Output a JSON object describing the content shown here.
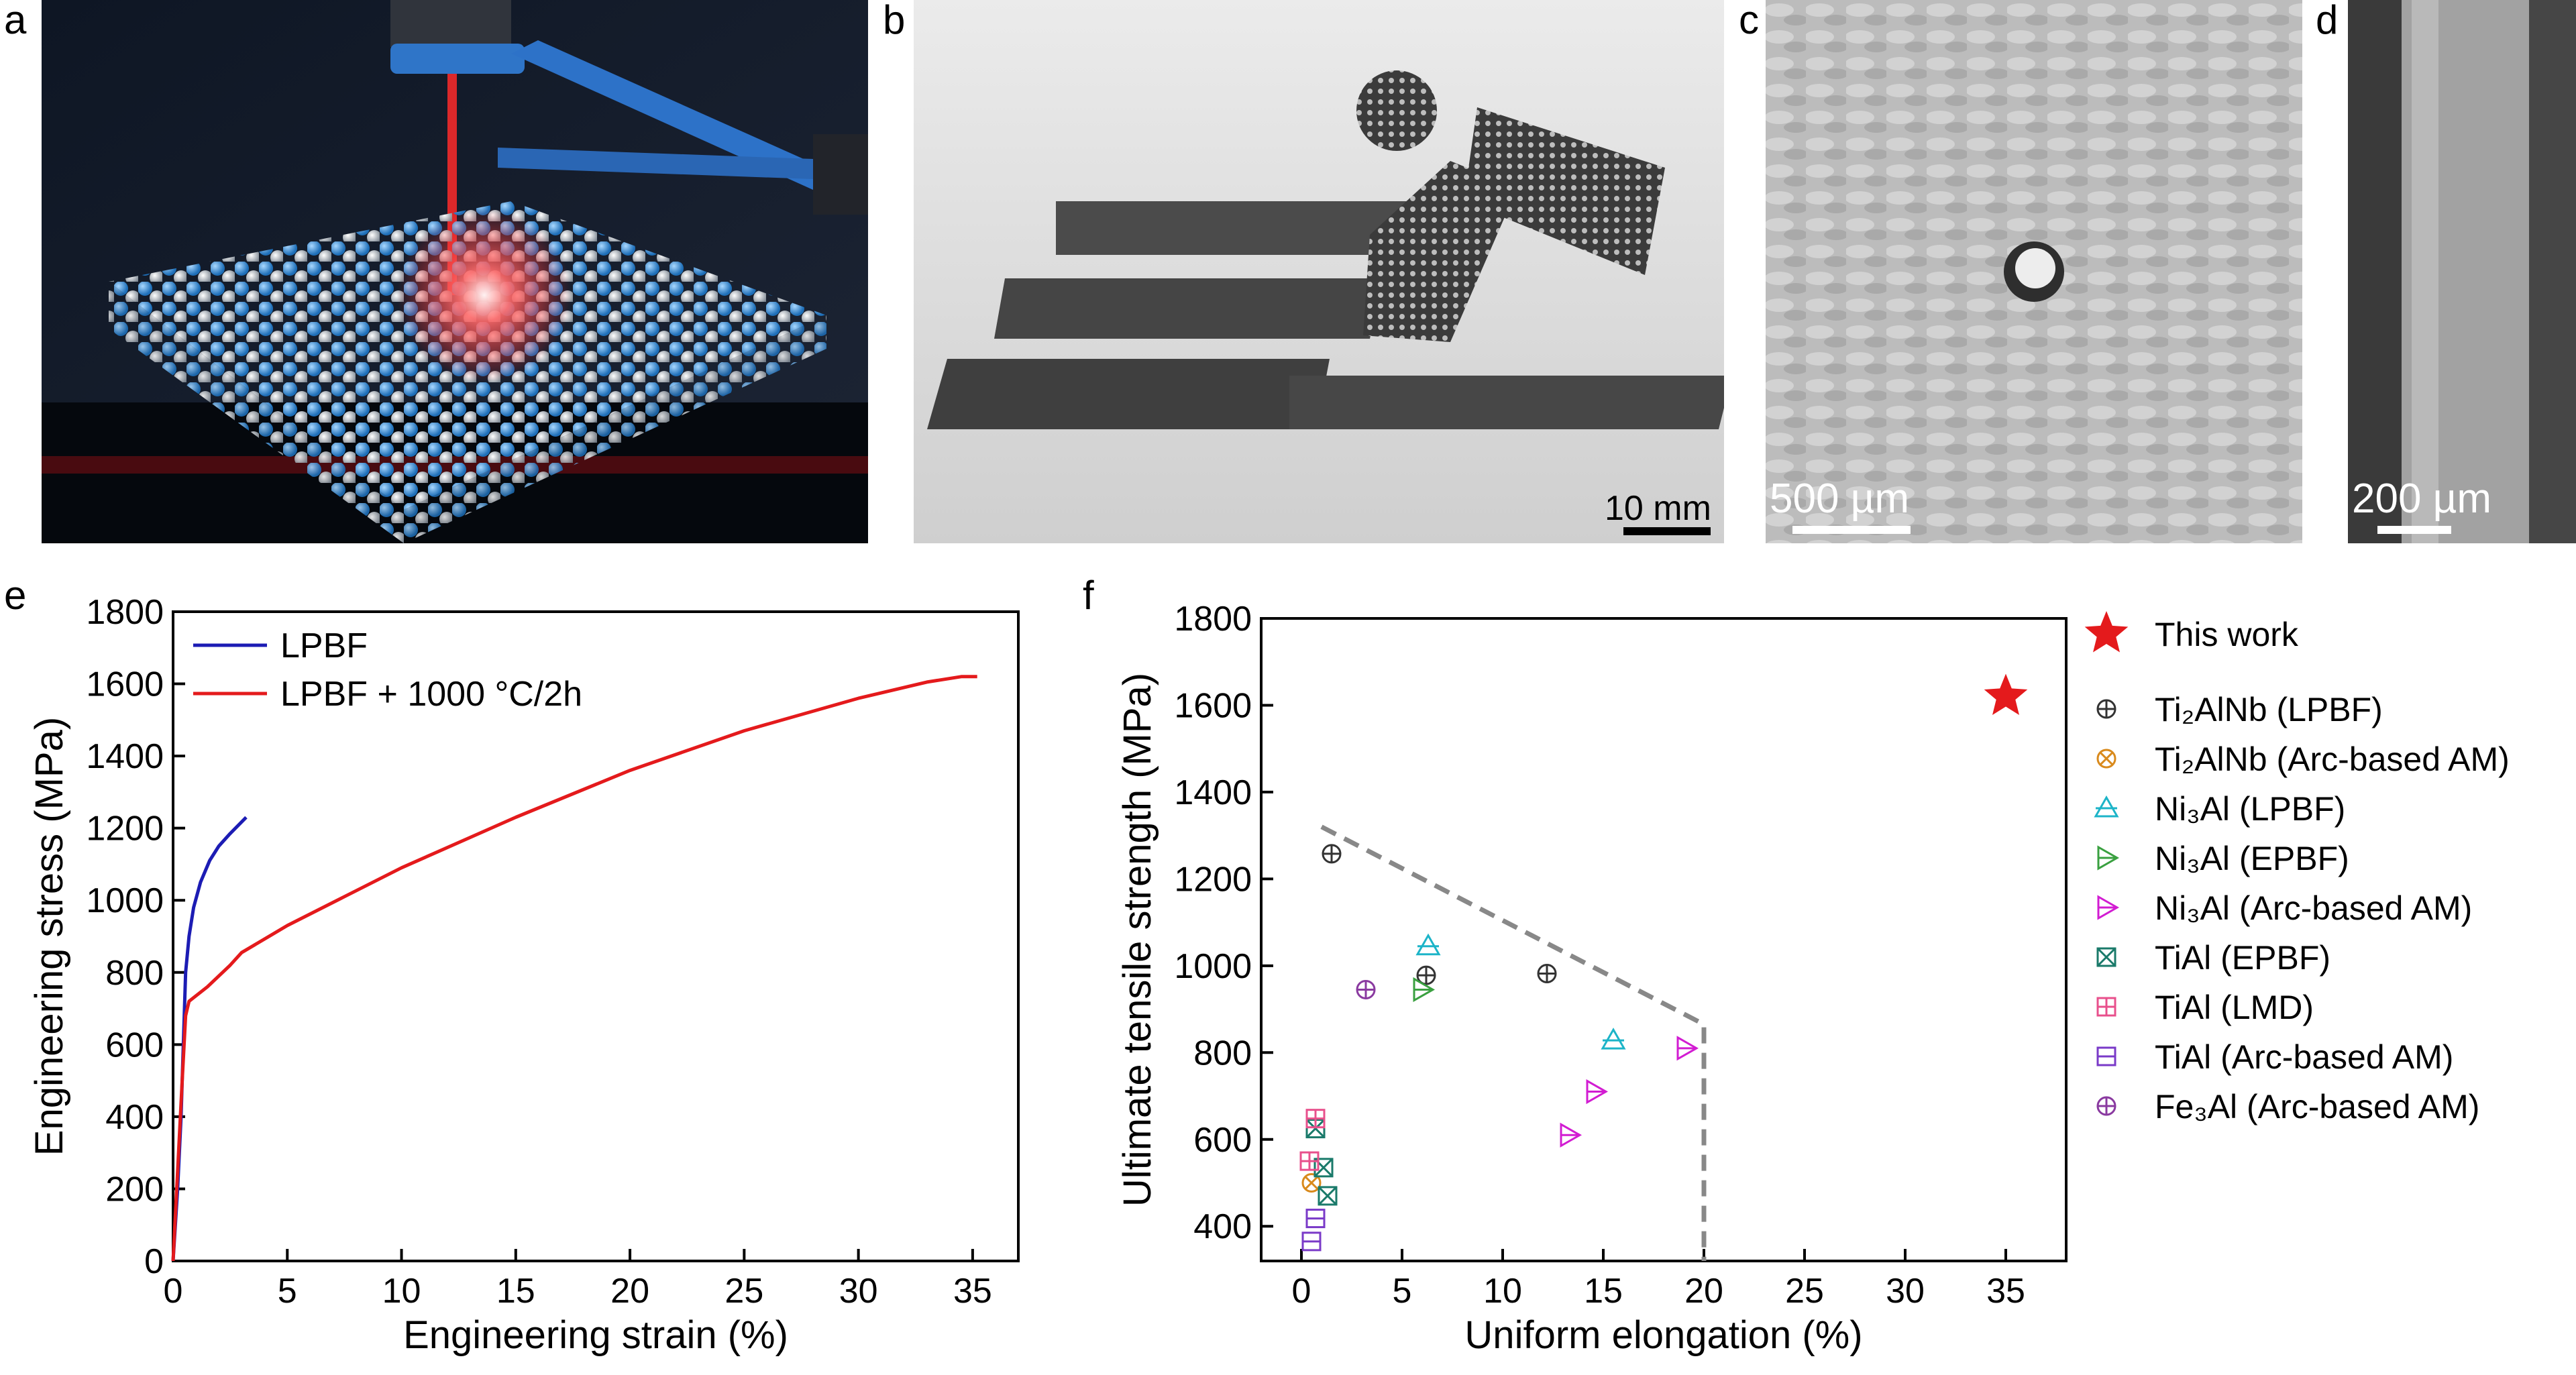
{
  "panels": {
    "a": {
      "label": "a"
    },
    "b": {
      "label": "b",
      "scale_text": "10 mm"
    },
    "c": {
      "label": "c",
      "scale_text": "500 µm"
    },
    "d": {
      "label": "d",
      "scale_text": "200 µm"
    },
    "e": {
      "label": "e"
    },
    "f": {
      "label": "f"
    }
  },
  "chart_data": [
    {
      "panel": "e",
      "type": "line",
      "xlabel": "Engineering strain (%)",
      "ylabel": "Engineering stress (MPa)",
      "xlim": [
        0,
        37
      ],
      "ylim": [
        0,
        1800
      ],
      "xticks": [
        0,
        5,
        10,
        15,
        20,
        25,
        30,
        35
      ],
      "yticks": [
        0,
        200,
        400,
        600,
        800,
        1000,
        1200,
        1400,
        1600,
        1800
      ],
      "legend_position": "top-left",
      "series": [
        {
          "name": "LPBF",
          "color": "#1c1cb4",
          "points": [
            [
              0,
              0
            ],
            [
              0.2,
              200
            ],
            [
              0.35,
              400
            ],
            [
              0.45,
              600
            ],
            [
              0.55,
              800
            ],
            [
              0.7,
              900
            ],
            [
              0.9,
              980
            ],
            [
              1.2,
              1050
            ],
            [
              1.6,
              1110
            ],
            [
              2.0,
              1150
            ],
            [
              2.5,
              1185
            ],
            [
              3.2,
              1230
            ]
          ]
        },
        {
          "name": "LPBF + 1000 °C/2h",
          "color": "#e41a1c",
          "points": [
            [
              0,
              0
            ],
            [
              0.2,
              250
            ],
            [
              0.4,
              500
            ],
            [
              0.55,
              680
            ],
            [
              0.7,
              720
            ],
            [
              1.5,
              760
            ],
            [
              2.5,
              820
            ],
            [
              3.0,
              855
            ],
            [
              5,
              930
            ],
            [
              7.5,
              1010
            ],
            [
              10,
              1090
            ],
            [
              15,
              1230
            ],
            [
              20,
              1360
            ],
            [
              25,
              1470
            ],
            [
              30,
              1560
            ],
            [
              33,
              1605
            ],
            [
              34.5,
              1620
            ],
            [
              35.2,
              1620
            ]
          ]
        }
      ]
    },
    {
      "panel": "f",
      "type": "scatter",
      "xlabel": "Uniform elongation (%)",
      "ylabel": "Ultimate tensile strength (MPa)",
      "xlim": [
        -2,
        38
      ],
      "ylim": [
        320,
        1800
      ],
      "xticks": [
        0,
        5,
        10,
        15,
        20,
        25,
        30,
        35
      ],
      "yticks": [
        400,
        600,
        800,
        1000,
        1200,
        1400,
        1600,
        1800
      ],
      "boundary_line": {
        "color": "#888888",
        "style": "dashed",
        "points": [
          [
            1,
            1320
          ],
          [
            20,
            865
          ],
          [
            20,
            320
          ]
        ]
      },
      "legend_position": "right",
      "series": [
        {
          "name": "This work",
          "marker": "star",
          "color": "#e41a1c",
          "points": [
            [
              35,
              1620
            ]
          ]
        },
        {
          "name": "Ti₂AlNb (LPBF)",
          "marker": "circle-plus",
          "color": "#333333",
          "points": [
            [
              1.5,
              1258
            ],
            [
              6.2,
              978
            ],
            [
              12.2,
              982
            ]
          ]
        },
        {
          "name": "Ti₂AlNb (Arc-based AM)",
          "marker": "circle-x",
          "color": "#d98a1c",
          "points": [
            [
              0.5,
              500
            ]
          ]
        },
        {
          "name": "Ni₃Al (LPBF)",
          "marker": "triangle-up",
          "color": "#1cb4c8",
          "points": [
            [
              6.3,
              1045
            ],
            [
              15.5,
              828
            ]
          ]
        },
        {
          "name": "Ni₃Al (EPBF)",
          "marker": "triangle-right",
          "color": "#3aa040",
          "points": [
            [
              6.0,
              945
            ]
          ]
        },
        {
          "name": "Ni₃Al (Arc-based AM)",
          "marker": "triangle-right",
          "color": "#d21cd2",
          "points": [
            [
              13.3,
              610
            ],
            [
              14.6,
              710
            ],
            [
              19.1,
              810
            ]
          ]
        },
        {
          "name": "TiAl (EPBF)",
          "marker": "square-x",
          "color": "#1a7a6a",
          "points": [
            [
              0.7,
              625
            ],
            [
              1.1,
              535
            ],
            [
              1.3,
              470
            ]
          ]
        },
        {
          "name": "TiAl (LMD)",
          "marker": "square-plus",
          "color": "#e8508c",
          "points": [
            [
              0.7,
              648
            ],
            [
              0.4,
              550
            ]
          ]
        },
        {
          "name": "TiAl (Arc-based AM)",
          "marker": "square-minus",
          "color": "#7a3ac8",
          "points": [
            [
              0.7,
              418
            ],
            [
              0.5,
              365
            ]
          ]
        },
        {
          "name": "Fe₃Al (Arc-based AM)",
          "marker": "circle-plus",
          "color": "#8a3aa0",
          "points": [
            [
              3.2,
              945
            ]
          ]
        }
      ]
    }
  ]
}
